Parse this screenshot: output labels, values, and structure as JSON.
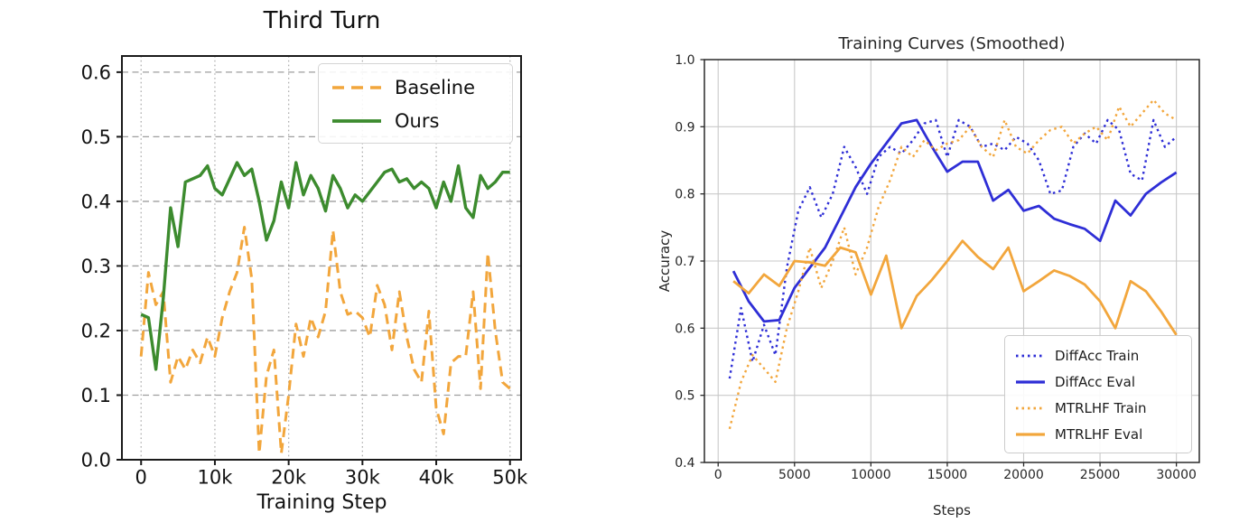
{
  "chart_data": [
    {
      "type": "line",
      "title": "Third Turn",
      "xlabel": "Training Step",
      "ylabel": "",
      "xlim": [
        -2600,
        51500
      ],
      "ylim": [
        0,
        0.625
      ],
      "grid": true,
      "legend_position": "upper right",
      "xticks": {
        "values": [
          0,
          10000,
          20000,
          30000,
          40000,
          50000
        ],
        "labels": [
          "0",
          "10k",
          "20k",
          "30k",
          "40k",
          "50k"
        ]
      },
      "yticks": {
        "values": [
          0.0,
          0.1,
          0.2,
          0.3,
          0.4,
          0.5,
          0.6
        ],
        "labels": [
          "0.0",
          "0.1",
          "0.2",
          "0.3",
          "0.4",
          "0.5",
          "0.6"
        ]
      },
      "series": [
        {
          "label": "Baseline",
          "color": "#f2a63c",
          "style": "dashed",
          "width": 3,
          "x": [
            0,
            1000,
            2000,
            3000,
            4000,
            5000,
            6000,
            7000,
            8000,
            9000,
            10000,
            11000,
            12000,
            13000,
            14000,
            15000,
            16000,
            17000,
            18000,
            19000,
            20000,
            21000,
            22000,
            23000,
            24000,
            25000,
            26000,
            27000,
            28000,
            29000,
            30000,
            31000,
            32000,
            33000,
            34000,
            35000,
            36000,
            37000,
            38000,
            39000,
            40000,
            41000,
            42000,
            43000,
            44000,
            45000,
            46000,
            47000,
            48000,
            49000,
            50000
          ],
          "y": [
            0.16,
            0.29,
            0.24,
            0.26,
            0.12,
            0.16,
            0.14,
            0.17,
            0.15,
            0.19,
            0.16,
            0.22,
            0.26,
            0.29,
            0.36,
            0.28,
            0.01,
            0.13,
            0.17,
            0.01,
            0.1,
            0.21,
            0.16,
            0.22,
            0.19,
            0.23,
            0.355,
            0.26,
            0.225,
            0.23,
            0.22,
            0.19,
            0.27,
            0.24,
            0.17,
            0.26,
            0.19,
            0.14,
            0.12,
            0.23,
            0.08,
            0.04,
            0.15,
            0.16,
            0.16,
            0.26,
            0.11,
            0.32,
            0.2,
            0.12,
            0.11
          ]
        },
        {
          "label": "Ours",
          "color": "#3c8b2e",
          "style": "solid",
          "width": 3.4,
          "x": [
            0,
            1000,
            2000,
            3000,
            4000,
            5000,
            6000,
            7000,
            8000,
            9000,
            10000,
            11000,
            12000,
            13000,
            14000,
            15000,
            16000,
            17000,
            18000,
            19000,
            20000,
            21000,
            22000,
            23000,
            24000,
            25000,
            26000,
            27000,
            28000,
            29000,
            30000,
            31000,
            32000,
            33000,
            34000,
            35000,
            36000,
            37000,
            38000,
            39000,
            40000,
            41000,
            42000,
            43000,
            44000,
            45000,
            46000,
            47000,
            48000,
            49000,
            50000
          ],
          "y": [
            0.225,
            0.22,
            0.14,
            0.25,
            0.39,
            0.33,
            0.43,
            0.435,
            0.44,
            0.455,
            0.42,
            0.41,
            0.435,
            0.46,
            0.44,
            0.45,
            0.4,
            0.34,
            0.37,
            0.43,
            0.39,
            0.46,
            0.41,
            0.44,
            0.42,
            0.385,
            0.44,
            0.42,
            0.39,
            0.41,
            0.4,
            0.415,
            0.43,
            0.445,
            0.45,
            0.43,
            0.435,
            0.42,
            0.43,
            0.42,
            0.39,
            0.43,
            0.4,
            0.455,
            0.39,
            0.375,
            0.44,
            0.42,
            0.43,
            0.445,
            0.445
          ]
        }
      ]
    },
    {
      "type": "line",
      "title": "Training Curves (Smoothed)",
      "xlabel": "Steps",
      "ylabel": "Accuracy",
      "xlim": [
        -900,
        31500
      ],
      "ylim": [
        0.4,
        1.0
      ],
      "grid": true,
      "legend_position": "lower right",
      "xticks": {
        "values": [
          0,
          5000,
          10000,
          15000,
          20000,
          25000,
          30000
        ],
        "labels": [
          "0",
          "5000",
          "10000",
          "15000",
          "20000",
          "25000",
          "30000"
        ]
      },
      "yticks": {
        "values": [
          0.4,
          0.5,
          0.6,
          0.7,
          0.8,
          0.9,
          1.0
        ],
        "labels": [
          "0.4",
          "0.5",
          "0.6",
          "0.7",
          "0.8",
          "0.9",
          "1.0"
        ]
      },
      "series": [
        {
          "label": "DiffAcc Train",
          "color": "#2e2ed6",
          "style": "dotted",
          "width": 2.4,
          "x": [
            750,
            1500,
            2250,
            3000,
            3750,
            4500,
            5250,
            6000,
            6750,
            7500,
            8250,
            9000,
            9750,
            10500,
            11250,
            12000,
            12750,
            13500,
            14250,
            15000,
            15750,
            16500,
            17250,
            18000,
            18750,
            19500,
            20250,
            21000,
            21750,
            22500,
            23250,
            24000,
            24750,
            25500,
            26250,
            27000,
            27750,
            28500,
            29250,
            30000
          ],
          "y": [
            0.525,
            0.63,
            0.55,
            0.605,
            0.56,
            0.69,
            0.775,
            0.81,
            0.765,
            0.8,
            0.87,
            0.84,
            0.8,
            0.855,
            0.87,
            0.86,
            0.88,
            0.905,
            0.91,
            0.855,
            0.91,
            0.9,
            0.87,
            0.875,
            0.865,
            0.885,
            0.875,
            0.85,
            0.8,
            0.805,
            0.87,
            0.89,
            0.875,
            0.91,
            0.895,
            0.83,
            0.82,
            0.91,
            0.87,
            0.885
          ]
        },
        {
          "label": "DiffAcc Eval",
          "color": "#2e2ed6",
          "style": "solid",
          "width": 2.8,
          "x": [
            1000,
            2000,
            3000,
            4000,
            5000,
            6000,
            7000,
            8000,
            9000,
            10000,
            11000,
            12000,
            13000,
            14000,
            15000,
            16000,
            17000,
            18000,
            19000,
            20000,
            21000,
            22000,
            23000,
            24000,
            25000,
            26000,
            27000,
            28000,
            29000,
            30000
          ],
          "y": [
            0.685,
            0.64,
            0.61,
            0.612,
            0.66,
            0.69,
            0.72,
            0.765,
            0.81,
            0.845,
            0.875,
            0.905,
            0.91,
            0.87,
            0.833,
            0.848,
            0.848,
            0.79,
            0.806,
            0.775,
            0.782,
            0.763,
            0.755,
            0.748,
            0.73,
            0.79,
            0.768,
            0.8,
            0.817,
            0.832
          ]
        },
        {
          "label": "MTRLHF Train",
          "color": "#f2a63c",
          "style": "dotted",
          "width": 2.4,
          "x": [
            750,
            1500,
            2250,
            3000,
            3750,
            4500,
            5250,
            6000,
            6750,
            7500,
            8250,
            9000,
            9750,
            10500,
            11250,
            12000,
            12750,
            13500,
            14250,
            15000,
            15750,
            16500,
            17250,
            18000,
            18750,
            19500,
            20250,
            21000,
            21750,
            22500,
            23250,
            24000,
            24750,
            25500,
            26250,
            27000,
            27750,
            28500,
            29250,
            30000
          ],
          "y": [
            0.45,
            0.52,
            0.56,
            0.54,
            0.52,
            0.6,
            0.655,
            0.72,
            0.66,
            0.7,
            0.75,
            0.68,
            0.72,
            0.78,
            0.82,
            0.87,
            0.855,
            0.88,
            0.865,
            0.875,
            0.88,
            0.9,
            0.87,
            0.855,
            0.91,
            0.87,
            0.86,
            0.88,
            0.895,
            0.9,
            0.875,
            0.89,
            0.9,
            0.88,
            0.93,
            0.9,
            0.92,
            0.94,
            0.92,
            0.91
          ]
        },
        {
          "label": "MTRLHF Eval",
          "color": "#f2a63c",
          "style": "solid",
          "width": 2.8,
          "x": [
            1000,
            2000,
            3000,
            4000,
            5000,
            6000,
            7000,
            8000,
            9000,
            10000,
            11000,
            12000,
            13000,
            14000,
            15000,
            16000,
            17000,
            18000,
            19000,
            20000,
            21000,
            22000,
            23000,
            24000,
            25000,
            26000,
            27000,
            28000,
            29000,
            30000
          ],
          "y": [
            0.67,
            0.652,
            0.68,
            0.663,
            0.7,
            0.698,
            0.693,
            0.72,
            0.713,
            0.65,
            0.708,
            0.6,
            0.648,
            0.672,
            0.7,
            0.73,
            0.706,
            0.688,
            0.72,
            0.655,
            0.67,
            0.686,
            0.678,
            0.665,
            0.64,
            0.6,
            0.67,
            0.655,
            0.625,
            0.59
          ]
        }
      ]
    }
  ]
}
